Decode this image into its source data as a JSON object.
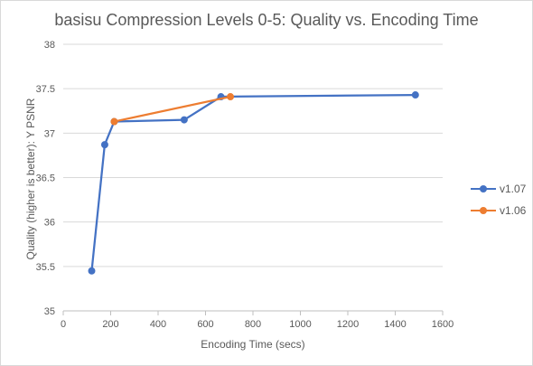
{
  "chart_data": {
    "type": "line",
    "title": "basisu Compression Levels 0-5: Quality vs. Encoding Time",
    "xlabel": "Encoding Time (secs)",
    "ylabel": "Quality (higher is better): Y PSNR",
    "xlim": [
      0,
      1600
    ],
    "ylim": [
      35,
      38
    ],
    "xticks": [
      0,
      200,
      400,
      600,
      800,
      1000,
      1200,
      1400,
      1600
    ],
    "yticks": [
      35,
      35.5,
      36,
      36.5,
      37,
      37.5,
      38
    ],
    "ytick_labels": [
      "35",
      "35.5",
      "36",
      "36.5",
      "37",
      "37.5",
      "38"
    ],
    "grid": "horizontal",
    "legend_position": "right",
    "series": [
      {
        "name": "v1.07",
        "color": "#4472c4",
        "x": [
          120,
          175,
          215,
          510,
          665,
          1485
        ],
        "y": [
          35.45,
          36.87,
          37.13,
          37.15,
          37.41,
          37.43
        ]
      },
      {
        "name": "v1.06",
        "color": "#ed7d31",
        "x": [
          215,
          705
        ],
        "y": [
          37.13,
          37.41
        ]
      }
    ]
  }
}
